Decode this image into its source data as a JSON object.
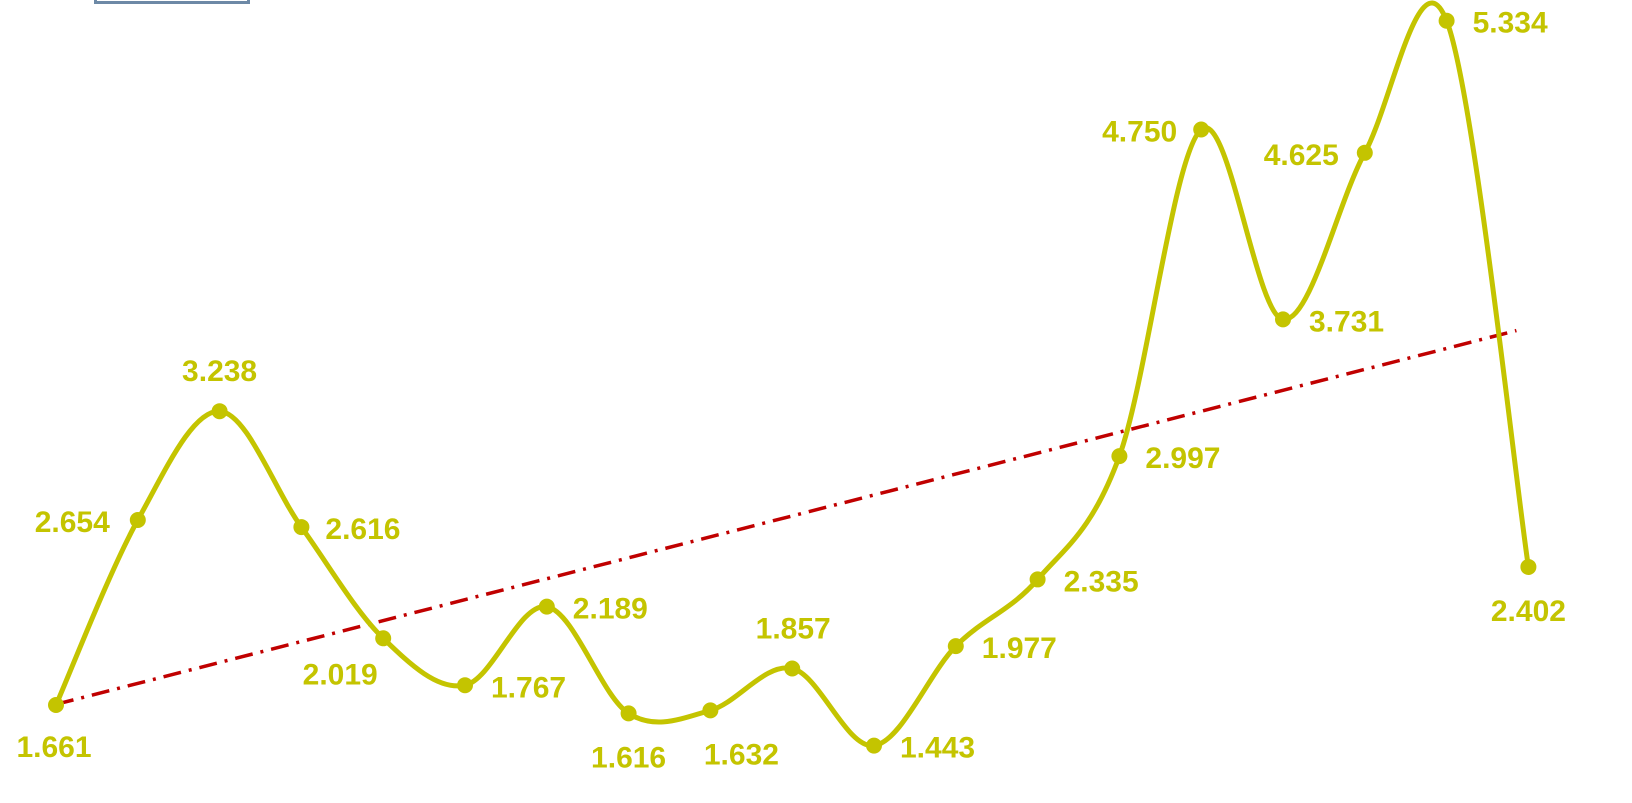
{
  "chart_data": {
    "type": "line",
    "title": "",
    "xlabel": "",
    "ylabel": "",
    "smooth": true,
    "colors": {
      "series": "#c4c400",
      "trendline": "#c00000"
    },
    "grid": false,
    "legend": "none",
    "x": [
      1,
      2,
      3,
      4,
      5,
      6,
      7,
      8,
      9,
      10,
      11,
      12,
      13,
      14,
      15,
      16,
      17,
      18,
      19
    ],
    "series": [
      {
        "values": [
          1.661,
          2.654,
          3.238,
          2.616,
          2.019,
          1.767,
          2.189,
          1.616,
          1.632,
          1.857,
          1.443,
          1.977,
          2.335,
          2.997,
          4.75,
          3.731,
          4.625,
          5.334,
          2.402
        ],
        "labels": [
          "1.661",
          "2.654",
          "3.238",
          "2.616",
          "2.019",
          "1.767",
          "2.189",
          "1.616",
          "1.632",
          "1.857",
          "1.443",
          "1.977",
          "2.335",
          "2.997",
          "4.750",
          "3.731",
          "4.625",
          "5.334",
          "2.402"
        ]
      }
    ],
    "trendline": {
      "type": "linear",
      "style": "dash-dot"
    }
  }
}
